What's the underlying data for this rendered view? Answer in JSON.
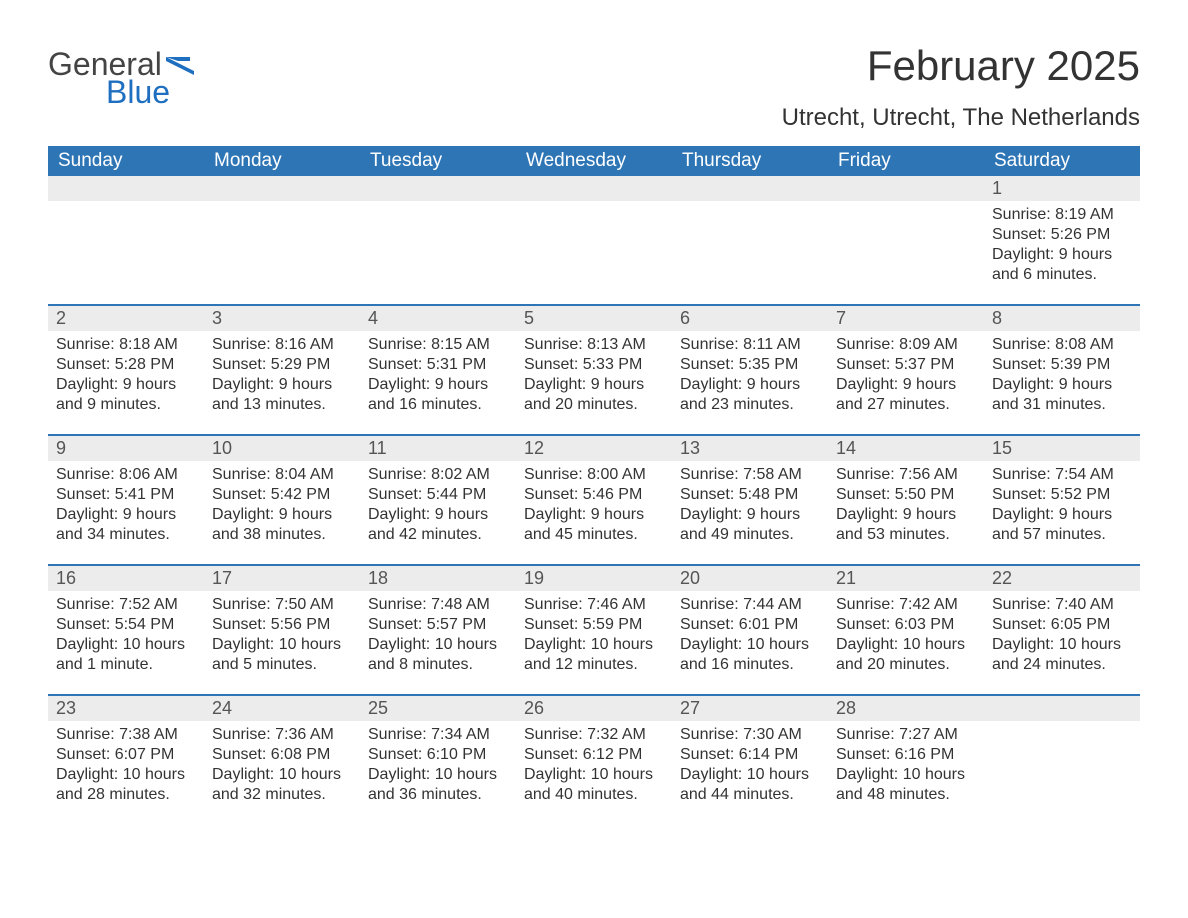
{
  "logo": {
    "word1": "General",
    "word2": "Blue"
  },
  "title": "February 2025",
  "location": "Utrecht, Utrecht, The Netherlands",
  "colors": {
    "header_bg": "#2e75b6",
    "header_fg": "#ffffff",
    "daynum_bg": "#ececec",
    "text": "#333333",
    "logo_blue": "#1f6fc0"
  },
  "day_headers": [
    "Sunday",
    "Monday",
    "Tuesday",
    "Wednesday",
    "Thursday",
    "Friday",
    "Saturday"
  ],
  "weeks": [
    [
      null,
      null,
      null,
      null,
      null,
      null,
      {
        "n": "1",
        "sunrise": "8:19 AM",
        "sunset": "5:26 PM",
        "daylight": "9 hours and 6 minutes."
      }
    ],
    [
      {
        "n": "2",
        "sunrise": "8:18 AM",
        "sunset": "5:28 PM",
        "daylight": "9 hours and 9 minutes."
      },
      {
        "n": "3",
        "sunrise": "8:16 AM",
        "sunset": "5:29 PM",
        "daylight": "9 hours and 13 minutes."
      },
      {
        "n": "4",
        "sunrise": "8:15 AM",
        "sunset": "5:31 PM",
        "daylight": "9 hours and 16 minutes."
      },
      {
        "n": "5",
        "sunrise": "8:13 AM",
        "sunset": "5:33 PM",
        "daylight": "9 hours and 20 minutes."
      },
      {
        "n": "6",
        "sunrise": "8:11 AM",
        "sunset": "5:35 PM",
        "daylight": "9 hours and 23 minutes."
      },
      {
        "n": "7",
        "sunrise": "8:09 AM",
        "sunset": "5:37 PM",
        "daylight": "9 hours and 27 minutes."
      },
      {
        "n": "8",
        "sunrise": "8:08 AM",
        "sunset": "5:39 PM",
        "daylight": "9 hours and 31 minutes."
      }
    ],
    [
      {
        "n": "9",
        "sunrise": "8:06 AM",
        "sunset": "5:41 PM",
        "daylight": "9 hours and 34 minutes."
      },
      {
        "n": "10",
        "sunrise": "8:04 AM",
        "sunset": "5:42 PM",
        "daylight": "9 hours and 38 minutes."
      },
      {
        "n": "11",
        "sunrise": "8:02 AM",
        "sunset": "5:44 PM",
        "daylight": "9 hours and 42 minutes."
      },
      {
        "n": "12",
        "sunrise": "8:00 AM",
        "sunset": "5:46 PM",
        "daylight": "9 hours and 45 minutes."
      },
      {
        "n": "13",
        "sunrise": "7:58 AM",
        "sunset": "5:48 PM",
        "daylight": "9 hours and 49 minutes."
      },
      {
        "n": "14",
        "sunrise": "7:56 AM",
        "sunset": "5:50 PM",
        "daylight": "9 hours and 53 minutes."
      },
      {
        "n": "15",
        "sunrise": "7:54 AM",
        "sunset": "5:52 PM",
        "daylight": "9 hours and 57 minutes."
      }
    ],
    [
      {
        "n": "16",
        "sunrise": "7:52 AM",
        "sunset": "5:54 PM",
        "daylight": "10 hours and 1 minute."
      },
      {
        "n": "17",
        "sunrise": "7:50 AM",
        "sunset": "5:56 PM",
        "daylight": "10 hours and 5 minutes."
      },
      {
        "n": "18",
        "sunrise": "7:48 AM",
        "sunset": "5:57 PM",
        "daylight": "10 hours and 8 minutes."
      },
      {
        "n": "19",
        "sunrise": "7:46 AM",
        "sunset": "5:59 PM",
        "daylight": "10 hours and 12 minutes."
      },
      {
        "n": "20",
        "sunrise": "7:44 AM",
        "sunset": "6:01 PM",
        "daylight": "10 hours and 16 minutes."
      },
      {
        "n": "21",
        "sunrise": "7:42 AM",
        "sunset": "6:03 PM",
        "daylight": "10 hours and 20 minutes."
      },
      {
        "n": "22",
        "sunrise": "7:40 AM",
        "sunset": "6:05 PM",
        "daylight": "10 hours and 24 minutes."
      }
    ],
    [
      {
        "n": "23",
        "sunrise": "7:38 AM",
        "sunset": "6:07 PM",
        "daylight": "10 hours and 28 minutes."
      },
      {
        "n": "24",
        "sunrise": "7:36 AM",
        "sunset": "6:08 PM",
        "daylight": "10 hours and 32 minutes."
      },
      {
        "n": "25",
        "sunrise": "7:34 AM",
        "sunset": "6:10 PM",
        "daylight": "10 hours and 36 minutes."
      },
      {
        "n": "26",
        "sunrise": "7:32 AM",
        "sunset": "6:12 PM",
        "daylight": "10 hours and 40 minutes."
      },
      {
        "n": "27",
        "sunrise": "7:30 AM",
        "sunset": "6:14 PM",
        "daylight": "10 hours and 44 minutes."
      },
      {
        "n": "28",
        "sunrise": "7:27 AM",
        "sunset": "6:16 PM",
        "daylight": "10 hours and 48 minutes."
      },
      null
    ]
  ],
  "labels": {
    "sunrise": "Sunrise:",
    "sunset": "Sunset:",
    "daylight": "Daylight:"
  }
}
